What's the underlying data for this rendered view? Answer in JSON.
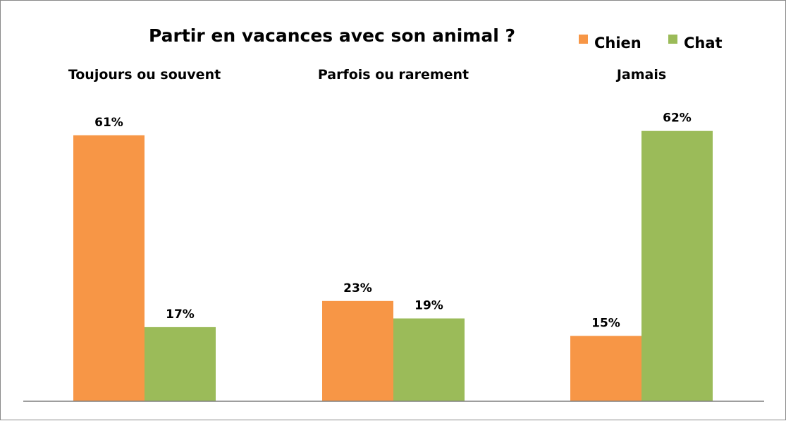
{
  "chart_data": {
    "type": "bar",
    "title": "Partir en vacances avec son animal ?",
    "categories": [
      "Toujours ou souvent",
      "Parfois ou rarement",
      "Jamais"
    ],
    "series": [
      {
        "name": "Chien",
        "color": "#F79646",
        "values": [
          61,
          23,
          15
        ],
        "labels": [
          "61%",
          "23%",
          "15%"
        ]
      },
      {
        "name": "Chat",
        "color": "#9BBB59",
        "values": [
          17,
          19,
          62
        ],
        "labels": [
          "17%",
          "19%",
          "62%"
        ]
      }
    ],
    "unit": "%",
    "ylim": [
      0,
      70
    ],
    "grid": false,
    "legend_position": "top-right",
    "axis_color": "#7f7f7f"
  }
}
